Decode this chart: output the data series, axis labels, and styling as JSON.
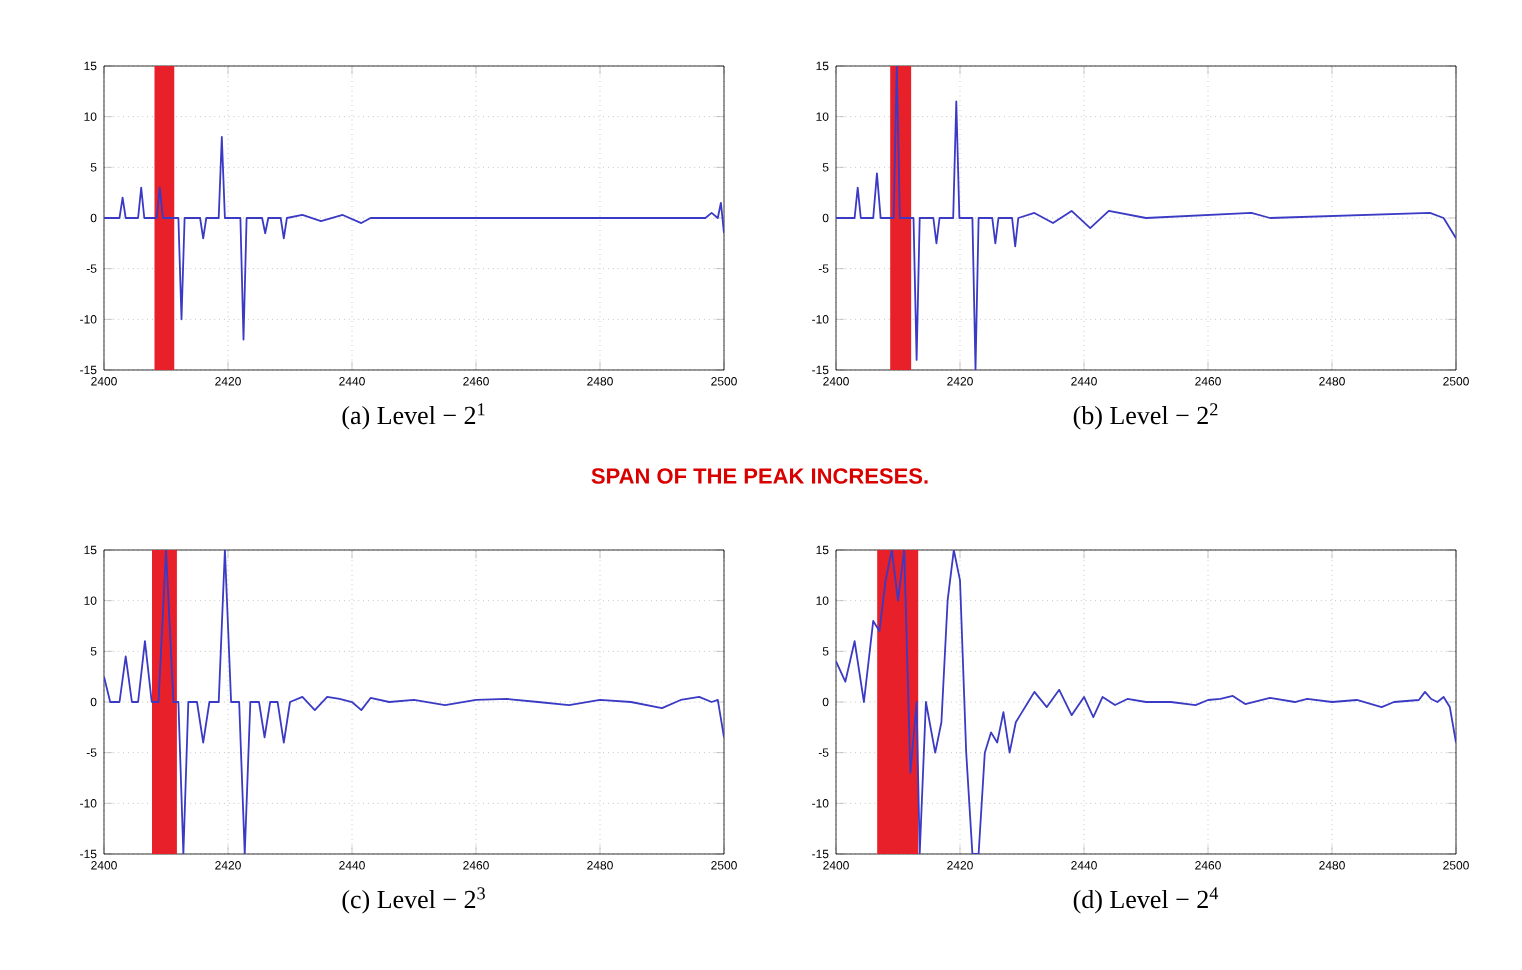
{
  "chart_data": [
    {
      "type": "line",
      "xlabel": "(a) Level − 2$^{1}$",
      "annotations": [
        "SPAN OF THE PEAK INCRESES."
      ],
      "xlim": [
        2400,
        2500
      ],
      "ylim": [
        -15,
        15
      ],
      "xticks": [
        2400,
        2420,
        2440,
        2460,
        2480,
        2500
      ],
      "yticks": [
        -15,
        -10,
        -5,
        0,
        5,
        10,
        15
      ],
      "grid": true,
      "color": "#3a3ac4",
      "bands": [
        {
          "axis": "x",
          "from": 2408.4,
          "to": 2411.1,
          "color": "#e8202a"
        }
      ],
      "x": [
        2400,
        2402.5,
        2403,
        2403.5,
        2405.5,
        2406,
        2406.5,
        2408.5,
        2409,
        2409.5,
        2412,
        2412.5,
        2413,
        2415.5,
        2416,
        2416.5,
        2418.5,
        2419,
        2419.5,
        2422,
        2422.5,
        2423,
        2425.5,
        2426,
        2426.5,
        2428.5,
        2429,
        2429.5,
        2432,
        2435,
        2438.5,
        2441.5,
        2443,
        2497,
        2498,
        2499,
        2499.5,
        2500
      ],
      "values": [
        0,
        0,
        2,
        0,
        0,
        3,
        0,
        0,
        3,
        0,
        0,
        -10,
        0,
        0,
        -2,
        0,
        0,
        8,
        0,
        0,
        -12,
        0,
        0,
        -1.5,
        0,
        0,
        -2,
        0,
        0.3,
        -0.3,
        0.3,
        -0.5,
        0,
        0,
        0.5,
        0,
        1.5,
        -1.5
      ]
    },
    {
      "type": "line",
      "xlabel": "(b) Level − 2$^{2}$",
      "xlim": [
        2400,
        2500
      ],
      "ylim": [
        -15,
        15
      ],
      "xticks": [
        2400,
        2420,
        2440,
        2460,
        2480,
        2500
      ],
      "yticks": [
        -15,
        -10,
        -5,
        0,
        5,
        10,
        15
      ],
      "grid": true,
      "color": "#3a3ac4",
      "bands": [
        {
          "axis": "x",
          "from": 2409,
          "to": 2411.9,
          "color": "#e8202a"
        }
      ],
      "x": [
        2400,
        2403,
        2403.5,
        2404,
        2406,
        2406.6,
        2407.2,
        2409.3,
        2409.8,
        2410.3,
        2412.5,
        2413,
        2413.5,
        2415.7,
        2416.2,
        2416.7,
        2418.9,
        2419.4,
        2419.9,
        2422,
        2422.5,
        2423,
        2425.2,
        2425.7,
        2426.2,
        2428.4,
        2428.9,
        2429.4,
        2432,
        2435,
        2438,
        2441,
        2444,
        2450,
        2467,
        2470,
        2495.8,
        2498,
        2500
      ],
      "values": [
        0,
        0,
        3,
        0,
        0,
        4.4,
        0,
        0,
        15,
        0,
        0,
        -14,
        0,
        0,
        -2.5,
        0,
        0,
        11.5,
        0,
        0,
        -15,
        0,
        0,
        -2.5,
        0,
        0,
        -2.8,
        0,
        0.5,
        -0.5,
        0.7,
        -1,
        0.7,
        0,
        0.5,
        0,
        0.5,
        0,
        -2
      ]
    },
    {
      "type": "line",
      "xlabel": "(c) Level − 2$^{3}$",
      "xlim": [
        2400,
        2500
      ],
      "ylim": [
        -15,
        15
      ],
      "xticks": [
        2400,
        2420,
        2440,
        2460,
        2480,
        2500
      ],
      "yticks": [
        -15,
        -10,
        -5,
        0,
        5,
        10,
        15
      ],
      "grid": true,
      "color": "#3a3ac4",
      "bands": [
        {
          "axis": "x",
          "from": 2408,
          "to": 2411.5,
          "color": "#e8202a"
        }
      ],
      "x": [
        2400,
        2401,
        2402.5,
        2403.5,
        2404.5,
        2405.5,
        2406.6,
        2407.7,
        2408.8,
        2410,
        2411.2,
        2412,
        2412.8,
        2413.6,
        2415,
        2416,
        2417,
        2418.5,
        2419.5,
        2420.5,
        2421.8,
        2422.7,
        2423.6,
        2425,
        2425.9,
        2426.8,
        2428,
        2429,
        2430,
        2432,
        2434,
        2436,
        2438,
        2440,
        2441.5,
        2443,
        2446,
        2450,
        2455,
        2460,
        2465,
        2470,
        2475,
        2480,
        2485,
        2490,
        2493,
        2496,
        2498,
        2499,
        2500
      ],
      "values": [
        2.5,
        0,
        0,
        4.5,
        0,
        0,
        6,
        0,
        0,
        15,
        0,
        0,
        -15,
        0,
        0,
        -4,
        0,
        0,
        15,
        0,
        0,
        -15,
        0,
        0,
        -3.5,
        0,
        0,
        -4,
        0,
        0.5,
        -0.8,
        0.5,
        0.3,
        0,
        -0.8,
        0.4,
        0,
        0.2,
        -0.3,
        0.2,
        0.3,
        0,
        -0.3,
        0.2,
        0,
        -0.6,
        0.2,
        0.5,
        0,
        0.2,
        -3.5
      ]
    },
    {
      "type": "line",
      "xlabel": "(d) Level − 2$^{4}$",
      "xlim": [
        2400,
        2500
      ],
      "ylim": [
        -15,
        15
      ],
      "xticks": [
        2400,
        2420,
        2440,
        2460,
        2480,
        2500
      ],
      "yticks": [
        -15,
        -10,
        -5,
        0,
        5,
        10,
        15
      ],
      "grid": true,
      "color": "#3a3ac4",
      "bands": [
        {
          "axis": "x",
          "from": 2406.9,
          "to": 2413,
          "color": "#e8202a"
        }
      ],
      "x": [
        2400,
        2401.5,
        2403,
        2404.5,
        2406,
        2407,
        2408,
        2409,
        2410,
        2411,
        2412,
        2413,
        2413.5,
        2414.5,
        2416,
        2417,
        2418,
        2419,
        2420,
        2421,
        2422,
        2423,
        2424,
        2425,
        2426,
        2427,
        2428,
        2429,
        2430,
        2431,
        2432,
        2434,
        2436,
        2438,
        2440,
        2441.5,
        2443,
        2445,
        2447,
        2450,
        2454,
        2458,
        2460,
        2462,
        2464,
        2466,
        2470,
        2474,
        2476,
        2480,
        2484,
        2488,
        2490,
        2494,
        2495,
        2496,
        2497,
        2498,
        2499,
        2500
      ],
      "values": [
        4,
        2,
        6,
        0,
        8,
        7,
        12,
        15,
        10,
        15,
        -7,
        0,
        -15,
        0,
        -5,
        -2,
        10,
        15,
        12,
        -5,
        -15,
        -15,
        -5,
        -3,
        -4,
        -1,
        -5,
        -2,
        -1,
        0,
        1,
        -0.5,
        1.2,
        -1.3,
        0.5,
        -1.5,
        0.5,
        -0.3,
        0.3,
        0,
        0,
        -0.3,
        0.2,
        0.3,
        0.6,
        -0.2,
        0.4,
        0,
        0.3,
        0,
        0.2,
        -0.5,
        0,
        0.2,
        1,
        0.3,
        0,
        0.5,
        -0.5,
        -4
      ]
    }
  ]
}
